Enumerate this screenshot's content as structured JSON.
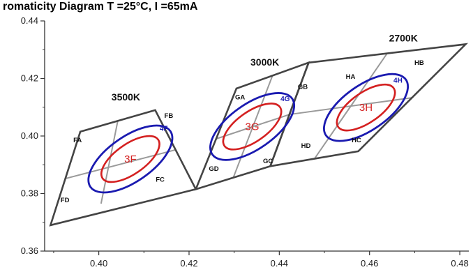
{
  "chart_data": {
    "type": "scatter",
    "title": "romaticity Diagram  T  =25°C, I  =65mA",
    "xlim": [
      0.388,
      0.482
    ],
    "ylim": [
      0.36,
      0.44
    ],
    "x_ticks": [
      0.4,
      0.42,
      0.44,
      0.46,
      0.48
    ],
    "y_ticks": [
      0.36,
      0.38,
      0.4,
      0.42,
      0.44
    ],
    "x_tick_labels": [
      "0.40",
      "0.42",
      "0.44",
      "0.46",
      "0.48"
    ],
    "y_tick_labels": [
      "0.36",
      "0.38",
      "0.40",
      "0.42",
      "0.44"
    ],
    "grid": false,
    "colors": {
      "bin_outline": "#444444",
      "bin_divider": "#9a9a9a",
      "inner_ellipse": "#d42020",
      "outer_ellipse": "#1a1ab0"
    },
    "bins": [
      {
        "cct": "3500K",
        "corners": [
          [
            0.3893,
            0.369
          ],
          [
            0.3959,
            0.4015
          ],
          [
            0.4125,
            0.409
          ],
          [
            0.4215,
            0.3815
          ]
        ],
        "mid": [
          [
            0.4005,
            0.3765
          ],
          [
            0.4042,
            0.4052
          ],
          [
            0.417,
            0.3952
          ],
          [
            0.3926,
            0.3852
          ]
        ],
        "center": [
          0.4074,
          0.3922
        ],
        "subbins": [
          {
            "label": "FA",
            "x": 0.3953,
            "y": 0.3985
          },
          {
            "label": "FB",
            "x": 0.4155,
            "y": 0.407
          },
          {
            "label": "FC",
            "x": 0.4136,
            "y": 0.3848
          },
          {
            "label": "FD",
            "x": 0.3925,
            "y": 0.3777
          }
        ]
      },
      {
        "cct": "3000K",
        "corners": [
          [
            0.4215,
            0.3815
          ],
          [
            0.4305,
            0.4165
          ],
          [
            0.4465,
            0.4255
          ],
          [
            0.438,
            0.3895
          ]
        ],
        "mid": [
          [
            0.4298,
            0.3855
          ],
          [
            0.4385,
            0.421
          ],
          [
            0.4423,
            0.4075
          ],
          [
            0.426,
            0.399
          ]
        ],
        "center": [
          0.434,
          0.4033
        ],
        "subbins": [
          {
            "label": "GA",
            "x": 0.4313,
            "y": 0.4134
          },
          {
            "label": "GB",
            "x": 0.4452,
            "y": 0.4171
          },
          {
            "label": "GC",
            "x": 0.4375,
            "y": 0.3913
          },
          {
            "label": "GD",
            "x": 0.4255,
            "y": 0.3886
          }
        ]
      },
      {
        "cct": "2700K",
        "corners": [
          [
            0.438,
            0.3895
          ],
          [
            0.4465,
            0.4255
          ],
          [
            0.4813,
            0.4319
          ],
          [
            0.4575,
            0.3947
          ]
        ],
        "mid": [
          [
            0.4478,
            0.3921
          ],
          [
            0.4639,
            0.4287
          ],
          [
            0.4694,
            0.4133
          ],
          [
            0.4423,
            0.4075
          ]
        ],
        "center": [
          0.4592,
          0.4099
        ],
        "subbins": [
          {
            "label": "HA",
            "x": 0.4558,
            "y": 0.4206
          },
          {
            "label": "HB",
            "x": 0.471,
            "y": 0.4254
          },
          {
            "label": "HC",
            "x": 0.4571,
            "y": 0.3985
          },
          {
            "label": "HD",
            "x": 0.4459,
            "y": 0.3966
          }
        ]
      }
    ],
    "ellipses": [
      {
        "inner_label": "3F",
        "outer_label": "4F",
        "center": [
          0.407,
          0.392
        ],
        "inner_axes": [
          0.0075,
          0.0052
        ],
        "outer_axes": [
          0.0108,
          0.0078
        ],
        "angle_deg": -35,
        "outer_label_pos": [
          0.4144,
          0.4026
        ]
      },
      {
        "inner_label": "3G",
        "outer_label": "4G",
        "center": [
          0.434,
          0.4033
        ],
        "inner_axes": [
          0.0075,
          0.0052
        ],
        "outer_axes": [
          0.0108,
          0.0078
        ],
        "angle_deg": -35,
        "outer_label_pos": [
          0.4413,
          0.4129
        ]
      },
      {
        "inner_label": "3H",
        "outer_label": "4H",
        "center": [
          0.4592,
          0.4099
        ],
        "inner_axes": [
          0.0075,
          0.0052
        ],
        "outer_axes": [
          0.0108,
          0.0078
        ],
        "angle_deg": -35,
        "outer_label_pos": [
          0.4663,
          0.4193
        ]
      }
    ],
    "cct_label_positions": [
      [
        0.406,
        0.4124
      ],
      [
        0.4368,
        0.4245
      ],
      [
        0.4675,
        0.4329
      ]
    ]
  }
}
